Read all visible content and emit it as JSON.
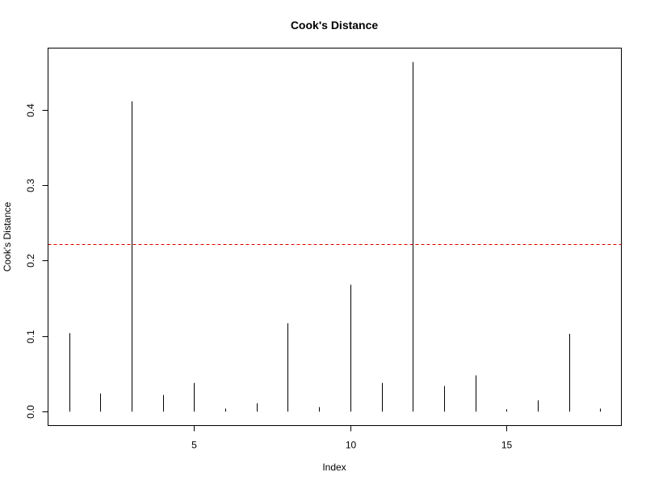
{
  "chart_data": {
    "type": "bar",
    "title": "Cook's Distance",
    "xlabel": "Index",
    "ylabel": "Cook's Distance",
    "x": [
      1,
      2,
      3,
      4,
      5,
      6,
      7,
      8,
      9,
      10,
      11,
      12,
      13,
      14,
      15,
      16,
      17,
      18
    ],
    "values": [
      0.104,
      0.024,
      0.411,
      0.022,
      0.038,
      0.004,
      0.011,
      0.117,
      0.006,
      0.168,
      0.038,
      0.463,
      0.034,
      0.048,
      0.003,
      0.015,
      0.103,
      0.004
    ],
    "xlim": [
      0.32,
      18.68
    ],
    "ylim": [
      -0.0185,
      0.4815
    ],
    "xticks": [
      5,
      10,
      15
    ],
    "yticks": [
      0.0,
      0.1,
      0.2,
      0.3,
      0.4
    ],
    "xtick_labels": [
      "5",
      "10",
      "15"
    ],
    "ytick_labels": [
      "0.0",
      "0.1",
      "0.2",
      "0.3",
      "0.4"
    ],
    "threshold": 0.222,
    "colors": {
      "bars": "#000000",
      "threshold": "#dd0000",
      "axis": "#000000"
    },
    "grid": false
  }
}
